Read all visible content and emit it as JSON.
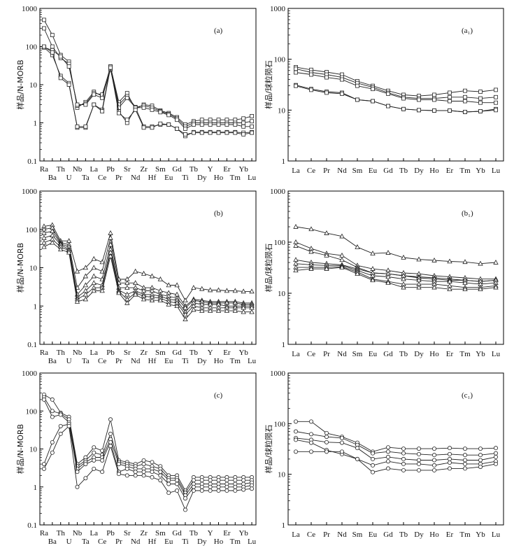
{
  "chart_data": [
    {
      "id": "a",
      "type": "line",
      "panel_label": "(a)",
      "ylabel": "样品/N-MORB",
      "yscale": "log",
      "ylim": [
        0.1,
        1000
      ],
      "marker": "square",
      "yticks": [
        "0.1",
        "1",
        "10",
        "100",
        "1000"
      ],
      "categories": [
        "Ra",
        "Ba",
        "Th",
        "U",
        "Nb",
        "Ta",
        "La",
        "Ce",
        "Pb",
        "Pr",
        "Sr",
        "Nd",
        "Zr",
        "Hf",
        "Sm",
        "Eu",
        "Gd",
        "Ti",
        "Tb",
        "Dy",
        "Y",
        "Ho",
        "Er",
        "Tm",
        "Yb",
        "Lu"
      ],
      "series": [
        {
          "values": [
            500,
            200,
            60,
            40,
            2.5,
            3.5,
            6.5,
            5,
            30,
            3.5,
            6,
            2.3,
            3,
            2.8,
            2.1,
            1.8,
            1.4,
            0.9,
            1.1,
            1.2,
            1.2,
            1.2,
            1.2,
            1.2,
            1.3,
            1.5
          ]
        },
        {
          "values": [
            300,
            100,
            50,
            35,
            2.8,
            3.2,
            6,
            5.5,
            28,
            3,
            5,
            2.6,
            2.8,
            2.5,
            2.0,
            1.7,
            1.3,
            0.8,
            1.0,
            1.0,
            1.0,
            1.0,
            1.0,
            1.0,
            1.0,
            1.1
          ]
        },
        {
          "values": [
            95,
            80,
            55,
            30,
            3,
            3,
            5.5,
            4.5,
            25,
            2.5,
            4.5,
            2.5,
            2.5,
            2.2,
            1.9,
            1.6,
            1.2,
            0.7,
            0.9,
            0.9,
            0.9,
            0.9,
            0.9,
            0.9,
            0.8,
            0.8
          ]
        },
        {
          "values": [
            95,
            60,
            17,
            11,
            0.75,
            0.75,
            3,
            2.2,
            30,
            2,
            1.0,
            2.5,
            0.8,
            0.8,
            0.9,
            0.9,
            0.7,
            0.45,
            0.57,
            0.57,
            0.57,
            0.57,
            0.57,
            0.57,
            0.55,
            0.57
          ]
        },
        {
          "values": [
            100,
            70,
            15,
            10,
            0.8,
            0.8,
            3,
            2,
            28,
            1.8,
            1.2,
            2.2,
            0.75,
            0.75,
            0.95,
            0.9,
            0.7,
            0.5,
            0.55,
            0.55,
            0.55,
            0.55,
            0.55,
            0.55,
            0.5,
            0.55
          ]
        }
      ]
    },
    {
      "id": "a1",
      "type": "line",
      "panel_label": "(a₁)",
      "ylabel": "样品/球粒陨石",
      "yscale": "log",
      "ylim": [
        1,
        1000
      ],
      "marker": "square",
      "yticks": [
        "1",
        "10",
        "100",
        "1000"
      ],
      "categories": [
        "La",
        "Ce",
        "Pr",
        "Nd",
        "Sm",
        "Eu",
        "Gd",
        "Tb",
        "Dy",
        "Ho",
        "Er",
        "Tm",
        "Yb",
        "Lu"
      ],
      "series": [
        {
          "values": [
            70,
            62,
            56,
            50,
            37,
            30,
            24,
            20,
            19,
            20,
            22,
            24,
            23,
            25
          ]
        },
        {
          "values": [
            65,
            55,
            50,
            44,
            34,
            28,
            22,
            18,
            17,
            17,
            18,
            18,
            17,
            18
          ]
        },
        {
          "values": [
            55,
            50,
            44,
            40,
            30,
            26,
            21,
            17,
            16,
            16,
            15,
            15,
            14,
            14
          ]
        },
        {
          "values": [
            31,
            26,
            23,
            22,
            16,
            15,
            12,
            10.5,
            10,
            9.8,
            9.8,
            9.2,
            9.5,
            10.5
          ]
        },
        {
          "values": [
            30,
            25,
            22,
            21,
            16,
            15,
            12,
            10.5,
            10,
            9.8,
            9.8,
            9.2,
            9.5,
            10
          ]
        }
      ]
    },
    {
      "id": "b",
      "type": "line",
      "panel_label": "(b)",
      "ylabel": "样品/N-MORB",
      "yscale": "log",
      "ylim": [
        0.1,
        1000
      ],
      "marker": "triangle",
      "yticks": [
        "0.1",
        "1",
        "10",
        "100",
        "1000"
      ],
      "categories": [
        "Ra",
        "Ba",
        "Th",
        "U",
        "Nb",
        "Ta",
        "La",
        "Ce",
        "Pb",
        "Pr",
        "Sr",
        "Nd",
        "Zr",
        "Hf",
        "Sm",
        "Eu",
        "Gd",
        "Ti",
        "Tb",
        "Dy",
        "Y",
        "Ho",
        "Er",
        "Tm",
        "Yb",
        "Lu"
      ],
      "series": [
        {
          "values": [
            120,
            130,
            50,
            50,
            8,
            10,
            17,
            14,
            80,
            5,
            5,
            8,
            7,
            6,
            5,
            3.5,
            3.5,
            1.4,
            3,
            2.8,
            2.6,
            2.6,
            2.5,
            2.5,
            2.4,
            2.4
          ]
        },
        {
          "values": [
            100,
            110,
            45,
            40,
            3,
            6,
            10,
            8,
            60,
            4,
            4,
            4,
            3,
            3,
            2.5,
            2.2,
            2.0,
            1.0,
            1.5,
            1.4,
            1.3,
            1.3,
            1.3,
            1.3,
            1.2,
            1.2
          ]
        },
        {
          "values": [
            80,
            90,
            42,
            35,
            2,
            3.5,
            6,
            5,
            40,
            3,
            3,
            3,
            2.5,
            2.5,
            2,
            1.8,
            1.6,
            0.9,
            1.4,
            1.3,
            1.2,
            1.2,
            1.2,
            1.2,
            1.1,
            1.1
          ]
        },
        {
          "values": [
            60,
            70,
            40,
            30,
            1.7,
            2.5,
            4,
            3.5,
            30,
            2.6,
            2,
            2.5,
            2,
            2,
            1.8,
            1.5,
            1.4,
            0.7,
            1.2,
            1.1,
            1.1,
            1.1,
            1.0,
            1.0,
            1.0,
            1.0
          ]
        },
        {
          "values": [
            45,
            55,
            35,
            28,
            1.5,
            2,
            3,
            3,
            25,
            2.4,
            1.5,
            2.2,
            1.8,
            1.7,
            1.6,
            1.3,
            1.2,
            0.6,
            1.0,
            0.9,
            0.9,
            0.9,
            0.9,
            0.9,
            0.9,
            0.9
          ]
        },
        {
          "values": [
            35,
            45,
            30,
            25,
            1.3,
            1.5,
            2.5,
            2.5,
            20,
            2.2,
            1.2,
            2,
            1.5,
            1.4,
            1.4,
            1.1,
            1.0,
            0.45,
            0.8,
            0.75,
            0.75,
            0.75,
            0.75,
            0.75,
            0.7,
            0.7
          ]
        }
      ]
    },
    {
      "id": "b1",
      "type": "line",
      "panel_label": "(b₁)",
      "ylabel": "样品/球粒陨石",
      "yscale": "log",
      "ylim": [
        1,
        1000
      ],
      "marker": "triangle",
      "yticks": [
        "1",
        "10",
        "100",
        "1000"
      ],
      "categories": [
        "La",
        "Ce",
        "Pr",
        "Nd",
        "Sm",
        "Eu",
        "Gd",
        "Tb",
        "Dy",
        "Ho",
        "Er",
        "Tm",
        "Yb",
        "Lu"
      ],
      "series": [
        {
          "values": [
            200,
            180,
            150,
            130,
            80,
            60,
            62,
            50,
            46,
            44,
            42,
            41,
            38,
            40
          ]
        },
        {
          "values": [
            100,
            75,
            60,
            55,
            35,
            30,
            28,
            25,
            24,
            22,
            21,
            20,
            19,
            19
          ]
        },
        {
          "values": [
            85,
            65,
            55,
            45,
            32,
            25,
            24,
            22,
            21,
            20,
            19,
            18,
            17,
            18
          ]
        },
        {
          "values": [
            45,
            40,
            38,
            36,
            30,
            25,
            24,
            22,
            20,
            19,
            18,
            18,
            17,
            18
          ]
        },
        {
          "values": [
            38,
            36,
            35,
            35,
            28,
            22,
            21,
            19,
            18,
            17,
            17,
            16,
            15,
            16
          ]
        },
        {
          "values": [
            32,
            32,
            32,
            33,
            26,
            19,
            17,
            15,
            15,
            15,
            14,
            13,
            13,
            14
          ]
        },
        {
          "values": [
            28,
            30,
            30,
            32,
            24,
            18,
            16,
            13,
            13,
            13,
            12,
            12,
            12,
            13
          ]
        }
      ]
    },
    {
      "id": "c",
      "type": "line",
      "panel_label": "(c)",
      "ylabel": "样品/N-MORB",
      "yscale": "log",
      "ylim": [
        0.1,
        1000
      ],
      "marker": "circle",
      "yticks": [
        "0.1",
        "1",
        "10",
        "100",
        "1000"
      ],
      "categories": [
        "Ra",
        "Ba",
        "Th",
        "U",
        "Nb",
        "Ta",
        "La",
        "Ce",
        "Pb",
        "Pr",
        "Sr",
        "Nd",
        "Zr",
        "Hf",
        "Sm",
        "Eu",
        "Gd",
        "Ti",
        "Tb",
        "Dy",
        "Y",
        "Ho",
        "Er",
        "Tm",
        "Yb",
        "Lu"
      ],
      "series": [
        {
          "values": [
            270,
            200,
            90,
            70,
            4,
            6,
            11,
            9,
            60,
            5,
            4.5,
            4,
            5,
            4.5,
            3.5,
            2,
            2,
            0.8,
            1.8,
            1.8,
            1.8,
            1.8,
            1.8,
            1.8,
            1.8,
            1.8
          ]
        },
        {
          "values": [
            230,
            100,
            85,
            60,
            3.5,
            5,
            8,
            7,
            25,
            4.5,
            4,
            3.5,
            4,
            3.5,
            3,
            1.7,
            1.7,
            0.7,
            1.5,
            1.5,
            1.5,
            1.5,
            1.5,
            1.5,
            1.5,
            1.5
          ]
        },
        {
          "values": [
            200,
            70,
            80,
            50,
            3,
            4.5,
            6,
            6,
            18,
            4,
            3.5,
            3,
            3,
            3,
            2.5,
            1.5,
            1.5,
            0.6,
            1.2,
            1.2,
            1.2,
            1.2,
            1.2,
            1.2,
            1.2,
            1.3
          ]
        },
        {
          "values": [
            4,
            15,
            40,
            45,
            2.5,
            4,
            5,
            5,
            15,
            2.5,
            3,
            2.5,
            2.5,
            2.5,
            2,
            1.2,
            1.2,
            0.5,
            1.0,
            1.0,
            1.0,
            1.0,
            1.0,
            1.0,
            1.0,
            1.1
          ]
        },
        {
          "values": [
            3,
            8,
            25,
            40,
            1,
            1.7,
            3,
            2.5,
            12,
            2.2,
            2,
            2,
            2,
            1.8,
            1.5,
            0.7,
            0.8,
            0.25,
            0.8,
            0.8,
            0.8,
            0.8,
            0.8,
            0.8,
            0.85,
            0.9
          ]
        }
      ]
    },
    {
      "id": "c1",
      "type": "line",
      "panel_label": "(c₁)",
      "ylabel": "样品/球粒陨石",
      "yscale": "log",
      "ylim": [
        1,
        1000
      ],
      "marker": "circle",
      "yticks": [
        "1",
        "10",
        "100",
        "1000"
      ],
      "categories": [
        "La",
        "Ce",
        "Pr",
        "Nd",
        "Sm",
        "Eu",
        "Gd",
        "Tb",
        "Dy",
        "Ho",
        "Er",
        "Tm",
        "Yb",
        "Lu"
      ],
      "series": [
        {
          "values": [
            110,
            110,
            65,
            55,
            42,
            28,
            34,
            32,
            32,
            32,
            33,
            32,
            32,
            33
          ]
        },
        {
          "values": [
            70,
            62,
            55,
            52,
            38,
            26,
            28,
            26,
            25,
            24,
            25,
            24,
            24,
            26
          ]
        },
        {
          "values": [
            52,
            48,
            43,
            42,
            33,
            20,
            22,
            20,
            19,
            19,
            20,
            19,
            19,
            22
          ]
        },
        {
          "values": [
            48,
            42,
            30,
            25,
            20,
            15,
            18,
            16,
            16,
            15,
            17,
            16,
            16,
            18
          ]
        },
        {
          "values": [
            28,
            28,
            28,
            28,
            20,
            11,
            13,
            12,
            12,
            12,
            13,
            13,
            14,
            16
          ]
        }
      ]
    }
  ]
}
